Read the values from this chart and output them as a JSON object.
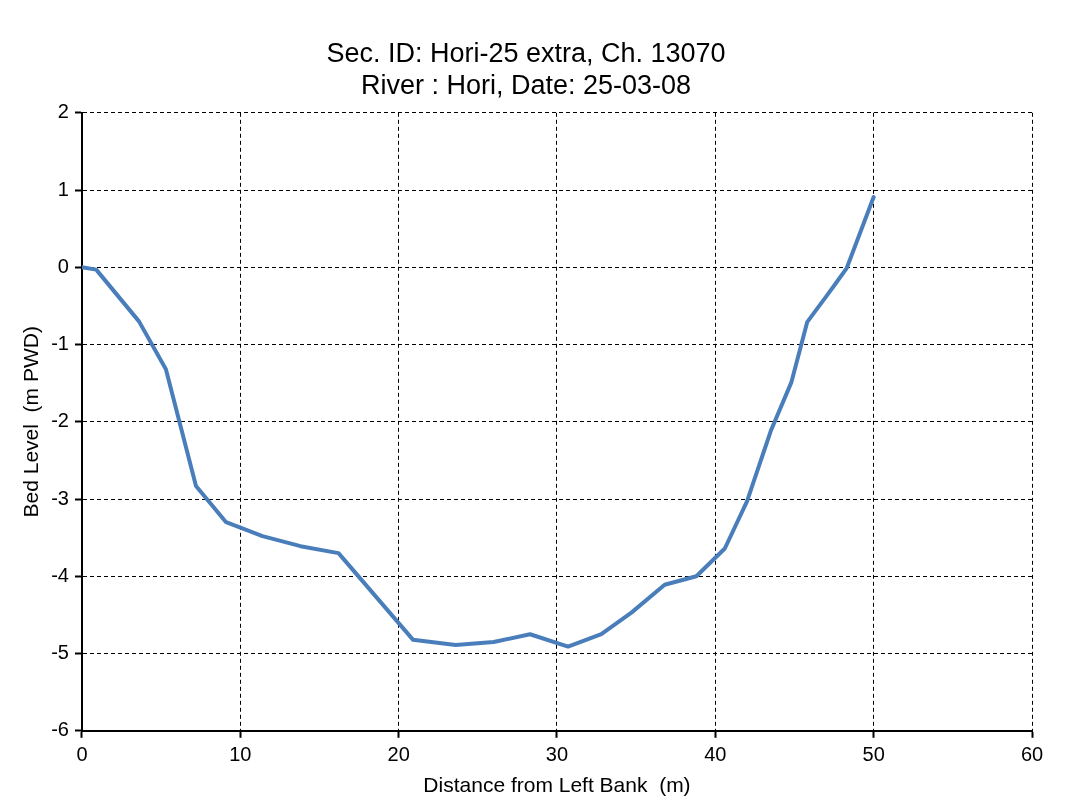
{
  "chart_data": {
    "type": "line",
    "title": "Sec. ID: Hori-25 extra, Ch. 13070",
    "subtitle": "River : Hori, Date: 25-03-08",
    "xlabel": "Distance from Left Bank  (m)",
    "ylabel": "Bed Level  (m PWD)",
    "x": [
      0,
      0.9,
      3.6,
      5.3,
      7.2,
      9.1,
      11.4,
      13.8,
      16.2,
      20.9,
      23.6,
      26.0,
      28.3,
      30.7,
      32.8,
      34.7,
      36.8,
      38.8,
      40.6,
      42.0,
      43.5,
      44.8,
      45.8,
      47.1,
      47.6,
      48.3,
      50.0
    ],
    "series": [
      {
        "color": "#4a7ebb",
        "values": [
          0,
          -0.03,
          -0.7,
          -1.32,
          -2.83,
          -3.3,
          -3.48,
          -3.61,
          -3.7,
          -4.82,
          -4.89,
          -4.85,
          -4.75,
          -4.91,
          -4.75,
          -4.47,
          -4.11,
          -4.0,
          -3.64,
          -3.03,
          -2.12,
          -1.49,
          -0.71,
          -0.35,
          -0.21,
          -0.01,
          0.91
        ]
      }
    ],
    "xlim": [
      0,
      60
    ],
    "xticks": [
      0,
      10,
      20,
      30,
      40,
      50,
      60
    ],
    "ylim": [
      -6,
      2
    ],
    "yticks": [
      -6,
      -5,
      -4,
      -3,
      -2,
      -1,
      0,
      1,
      2
    ],
    "grid": true,
    "legend": false,
    "marker": "none",
    "line_style": "solid"
  }
}
